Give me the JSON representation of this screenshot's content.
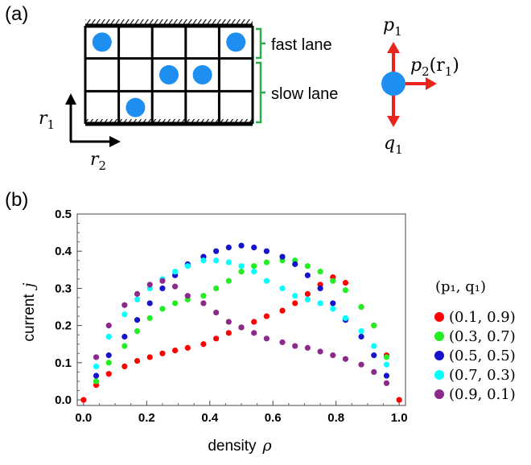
{
  "panel_a": {
    "label": "(a)",
    "fast_lane_label": "fast lane",
    "slow_lane_label": "slow lane",
    "grid": {
      "cols": 5,
      "rows": 3,
      "particles": [
        {
          "row": 0,
          "col": 0
        },
        {
          "row": 0,
          "col": 4
        },
        {
          "row": 1,
          "col": 2
        },
        {
          "row": 1,
          "col": 3
        },
        {
          "row": 2,
          "col": 1
        }
      ]
    },
    "axes": {
      "vertical": "r",
      "vertical_sub": "1",
      "horizontal": "r",
      "horizontal_sub": "2"
    },
    "rates": {
      "up": "p",
      "up_sub": "1",
      "right": "p",
      "right_sub": "2",
      "right_arg": "(r",
      "right_arg_sub": "1",
      "right_arg_close": ")",
      "down": "q",
      "down_sub": "1"
    },
    "colors": {
      "particle": "#1e8ff0",
      "arrow": "#e8251c",
      "bracket": "#2eaa4a",
      "grid": "#000000"
    }
  },
  "panel_b": {
    "label": "(b)"
  },
  "chart_data": {
    "type": "scatter",
    "xlabel": "density",
    "xlabel_symbol": "ρ",
    "ylabel": "current",
    "ylabel_symbol": "j",
    "xlim": [
      -0.02,
      1.02
    ],
    "ylim": [
      -0.015,
      0.5
    ],
    "xticks": [
      "0.0",
      "0.2",
      "0.4",
      "0.6",
      "0.8",
      "1.0"
    ],
    "yticks": [
      "0.0",
      "0.1",
      "0.2",
      "0.3",
      "0.4",
      "0.5"
    ],
    "legend_title": "(p₁, q₁)",
    "legend_position": "right",
    "series": [
      {
        "name": "(0.1, 0.9)",
        "color": "#ff0000",
        "points": [
          [
            0.0,
            0.0
          ],
          [
            0.04,
            0.04
          ],
          [
            0.08,
            0.07
          ],
          [
            0.13,
            0.09
          ],
          [
            0.17,
            0.105
          ],
          [
            0.21,
            0.115
          ],
          [
            0.25,
            0.125
          ],
          [
            0.29,
            0.133
          ],
          [
            0.33,
            0.14
          ],
          [
            0.38,
            0.15
          ],
          [
            0.42,
            0.165
          ],
          [
            0.46,
            0.18
          ],
          [
            0.5,
            0.195
          ],
          [
            0.54,
            0.21
          ],
          [
            0.58,
            0.225
          ],
          [
            0.63,
            0.24
          ],
          [
            0.67,
            0.26
          ],
          [
            0.71,
            0.285
          ],
          [
            0.75,
            0.31
          ],
          [
            0.79,
            0.33
          ],
          [
            0.83,
            0.315
          ],
          [
            0.88,
            0.25
          ],
          [
            0.92,
            0.2
          ],
          [
            0.96,
            0.12
          ],
          [
            1.0,
            0.0
          ]
        ]
      },
      {
        "name": "(0.3, 0.7)",
        "color": "#22ee22",
        "points": [
          [
            0.04,
            0.05
          ],
          [
            0.08,
            0.1
          ],
          [
            0.13,
            0.145
          ],
          [
            0.17,
            0.185
          ],
          [
            0.21,
            0.22
          ],
          [
            0.25,
            0.245
          ],
          [
            0.29,
            0.26
          ],
          [
            0.33,
            0.27
          ],
          [
            0.38,
            0.28
          ],
          [
            0.42,
            0.3
          ],
          [
            0.46,
            0.32
          ],
          [
            0.5,
            0.345
          ],
          [
            0.54,
            0.36
          ],
          [
            0.58,
            0.37
          ],
          [
            0.63,
            0.375
          ],
          [
            0.67,
            0.375
          ],
          [
            0.71,
            0.36
          ],
          [
            0.75,
            0.345
          ],
          [
            0.79,
            0.32
          ],
          [
            0.83,
            0.295
          ],
          [
            0.88,
            0.25
          ],
          [
            0.92,
            0.2
          ],
          [
            0.96,
            0.115
          ]
        ]
      },
      {
        "name": "(0.5, 0.5)",
        "color": "#1414cc",
        "points": [
          [
            0.04,
            0.065
          ],
          [
            0.08,
            0.12
          ],
          [
            0.13,
            0.17
          ],
          [
            0.17,
            0.215
          ],
          [
            0.21,
            0.26
          ],
          [
            0.25,
            0.3
          ],
          [
            0.29,
            0.335
          ],
          [
            0.33,
            0.365
          ],
          [
            0.38,
            0.385
          ],
          [
            0.42,
            0.4
          ],
          [
            0.46,
            0.41
          ],
          [
            0.5,
            0.415
          ],
          [
            0.54,
            0.41
          ],
          [
            0.58,
            0.4
          ],
          [
            0.63,
            0.385
          ],
          [
            0.67,
            0.365
          ],
          [
            0.71,
            0.335
          ],
          [
            0.75,
            0.3
          ],
          [
            0.79,
            0.26
          ],
          [
            0.83,
            0.215
          ],
          [
            0.88,
            0.17
          ],
          [
            0.92,
            0.12
          ],
          [
            0.96,
            0.065
          ]
        ]
      },
      {
        "name": "(0.7, 0.3)",
        "color": "#00ffff",
        "points": [
          [
            0.04,
            0.09
          ],
          [
            0.08,
            0.17
          ],
          [
            0.13,
            0.23
          ],
          [
            0.17,
            0.27
          ],
          [
            0.21,
            0.3
          ],
          [
            0.25,
            0.325
          ],
          [
            0.29,
            0.345
          ],
          [
            0.33,
            0.36
          ],
          [
            0.38,
            0.375
          ],
          [
            0.42,
            0.375
          ],
          [
            0.46,
            0.37
          ],
          [
            0.5,
            0.36
          ],
          [
            0.54,
            0.345
          ],
          [
            0.58,
            0.32
          ],
          [
            0.63,
            0.3
          ],
          [
            0.67,
            0.28
          ],
          [
            0.71,
            0.27
          ],
          [
            0.75,
            0.26
          ],
          [
            0.79,
            0.245
          ],
          [
            0.83,
            0.22
          ],
          [
            0.88,
            0.185
          ],
          [
            0.92,
            0.145
          ],
          [
            0.96,
            0.095
          ]
        ]
      },
      {
        "name": "(0.9, 0.1)",
        "color": "#8b2a8b",
        "points": [
          [
            0.04,
            0.115
          ],
          [
            0.08,
            0.2
          ],
          [
            0.13,
            0.255
          ],
          [
            0.17,
            0.285
          ],
          [
            0.21,
            0.31
          ],
          [
            0.25,
            0.32
          ],
          [
            0.29,
            0.305
          ],
          [
            0.33,
            0.28
          ],
          [
            0.38,
            0.26
          ],
          [
            0.42,
            0.235
          ],
          [
            0.46,
            0.21
          ],
          [
            0.5,
            0.195
          ],
          [
            0.54,
            0.18
          ],
          [
            0.58,
            0.165
          ],
          [
            0.63,
            0.155
          ],
          [
            0.67,
            0.145
          ],
          [
            0.71,
            0.14
          ],
          [
            0.75,
            0.13
          ],
          [
            0.79,
            0.12
          ],
          [
            0.83,
            0.11
          ],
          [
            0.88,
            0.095
          ],
          [
            0.92,
            0.075
          ],
          [
            0.96,
            0.045
          ]
        ]
      }
    ]
  }
}
